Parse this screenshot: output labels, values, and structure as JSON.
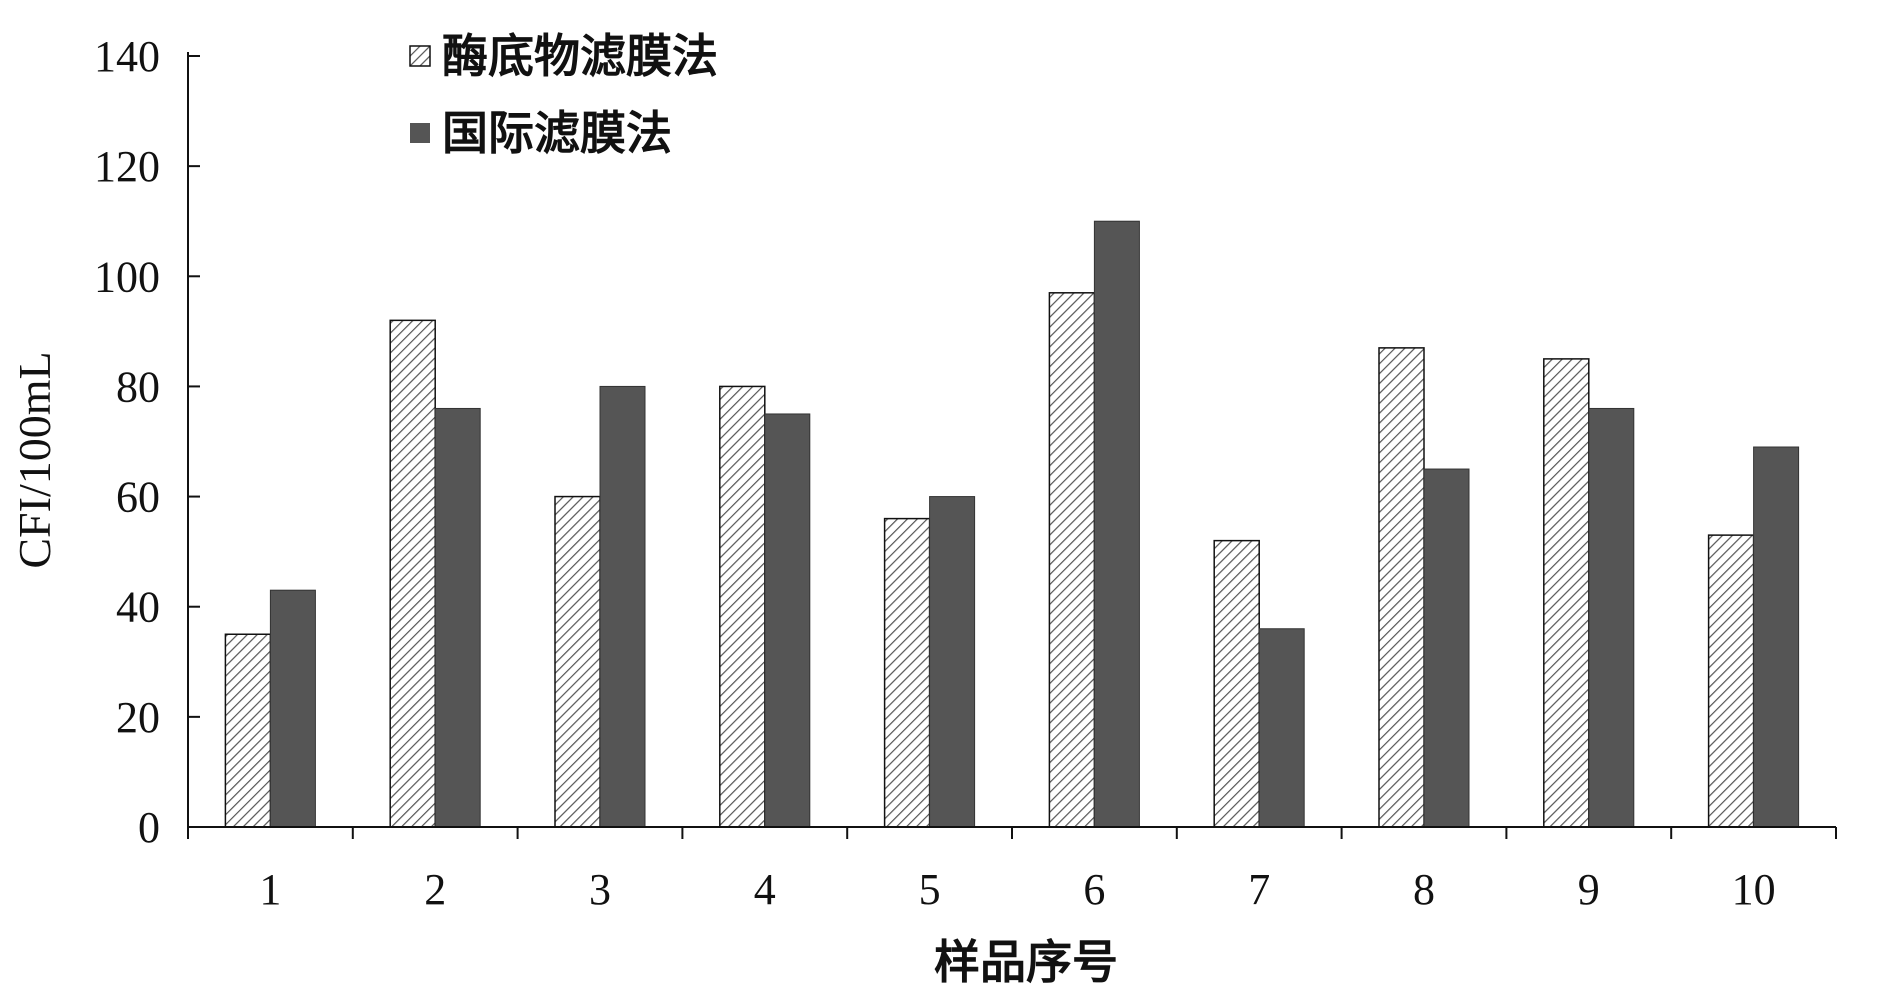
{
  "chart_data": {
    "type": "bar",
    "title": "",
    "xlabel": "样品序号",
    "ylabel": "CFI/100mL",
    "ylim": [
      0,
      140
    ],
    "yticks": [
      "0",
      "20",
      "40",
      "60",
      "80",
      "100",
      "120",
      "140"
    ],
    "categories": [
      "1",
      "2",
      "3",
      "4",
      "5",
      "6",
      "7",
      "8",
      "9",
      "10"
    ],
    "series": [
      {
        "name": "酶底物滤膜法",
        "values": [
          35,
          92,
          60,
          80,
          56,
          97,
          52,
          87,
          85,
          53
        ]
      },
      {
        "name": "国际滤膜法",
        "values": [
          43,
          76,
          80,
          75,
          60,
          110,
          36,
          65,
          76,
          69
        ]
      }
    ],
    "grid": false,
    "legend_position": "top-left",
    "colors": {
      "series1_fill": "#ffffff",
      "series1_hatch": "#555555",
      "series2_fill": "#555555",
      "axis": "#111111"
    }
  }
}
